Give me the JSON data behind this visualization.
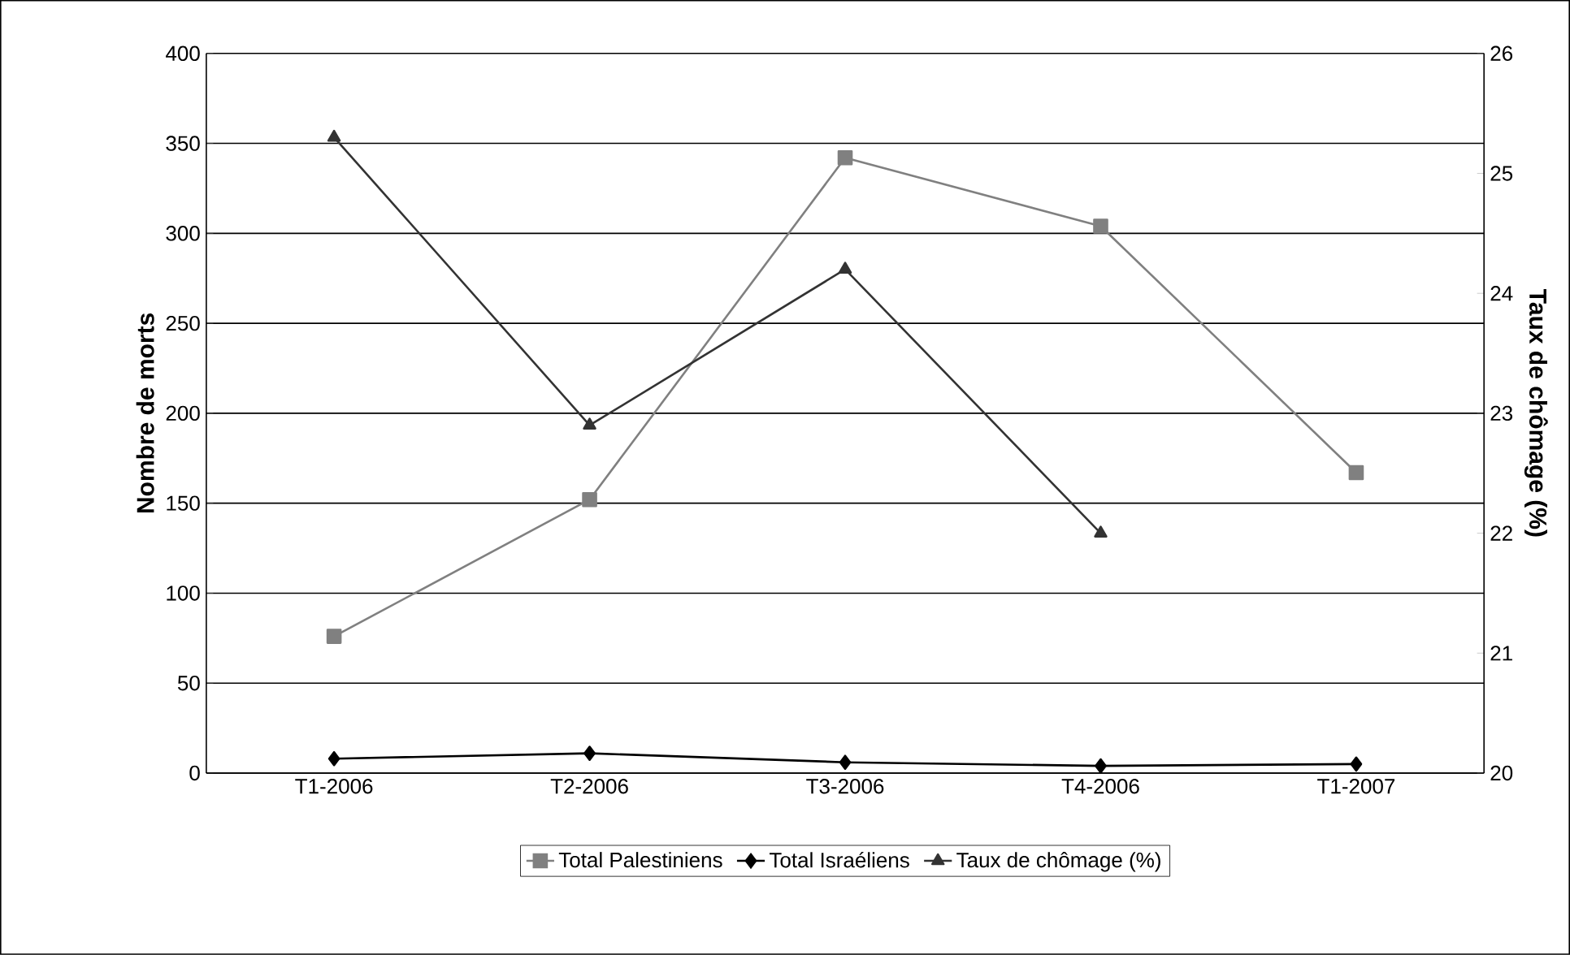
{
  "chart_data": {
    "type": "line",
    "ylabel": "Nombre de morts",
    "y2label": "Taux de chômage (%)",
    "categories": [
      "T1-2006",
      "T2-2006",
      "T3-2006",
      "T4-2006",
      "T1-2007"
    ],
    "series": [
      {
        "name": "Total Palestiniens",
        "color": "#808080",
        "marker": "square",
        "values": [
          76,
          152,
          342,
          304,
          167
        ]
      },
      {
        "name": "Total Israéliens",
        "color": "#000000",
        "marker": "diamond",
        "values": [
          8,
          11,
          6,
          4,
          5
        ]
      },
      {
        "name": "Taux de chômage (%)",
        "color": "#333333",
        "marker": "triangle",
        "axis": "y2",
        "values": [
          25.3,
          22.9,
          24.2,
          22.0,
          null
        ]
      }
    ],
    "ylim": [
      0,
      400
    ],
    "yticks": [
      0,
      50,
      100,
      150,
      200,
      250,
      300,
      350,
      400
    ],
    "y2lim": [
      20,
      26
    ],
    "y2ticks": [
      20,
      21,
      22,
      23,
      24,
      25,
      26
    ],
    "grid": "y",
    "legend": "bottom",
    "line_style": "solid"
  }
}
